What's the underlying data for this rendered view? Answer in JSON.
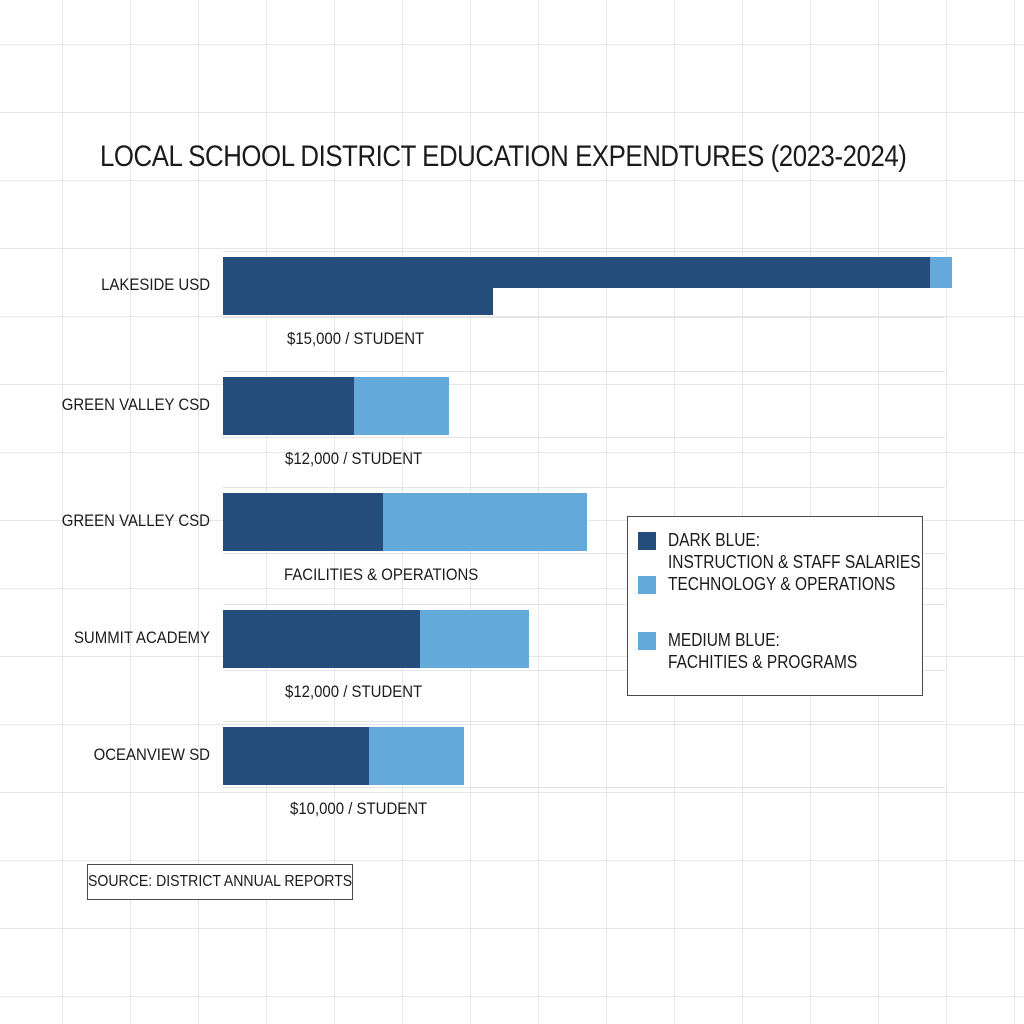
{
  "colors": {
    "dark_blue": "#244d7b",
    "medium_blue": "#63a9da",
    "text": "#1a1a1a"
  },
  "chart_data": {
    "type": "bar",
    "orientation": "horizontal",
    "stacked": true,
    "title": "LOCAL SCHOOL DISTRICT EDUCATION EXPENDTURES (2023-2024)",
    "xlabel": "",
    "ylabel": "",
    "xlim": [
      0,
      1
    ],
    "grid": true,
    "legend_position": "right",
    "categories": [
      "LAKESIDE USD",
      "GREEN VALLEY CSD",
      "GREEN VALLEY CSD",
      "SUMMIT ACADEMY",
      "OCEANVIEW SD"
    ],
    "annotations": [
      "$15,000 / STUDENT",
      "$12,000 / STUDENT",
      "FACILITIES & OPERATIONS",
      "$12,000 / STUDENT",
      "$10,000 / STUDENT"
    ],
    "series": [
      {
        "values": [
          0.97,
          0.18,
          0.22,
          0.27,
          0.2
        ]
      },
      {
        "values": [
          0.03,
          0.13,
          0.28,
          0.15,
          0.13
        ]
      }
    ],
    "extra_segments": [
      {
        "category_index": 0,
        "value": 0.37
      }
    ]
  },
  "legend": {
    "items": [
      {
        "lines": [
          "DARK BLUE:",
          "INSTRUCTION & STAFF SALARIES"
        ],
        "color": "#244d7b"
      },
      {
        "lines": [
          "TECHNOLOGY & OPERATIONS"
        ],
        "color": "#63a9da"
      },
      {
        "lines": [
          "MEDIUM BLUE:",
          "FACHITIES & PROGRAMS"
        ],
        "color": "#63a9da"
      }
    ]
  },
  "source": "SOURCE: DISTRICT ANNUAL REPORTS"
}
